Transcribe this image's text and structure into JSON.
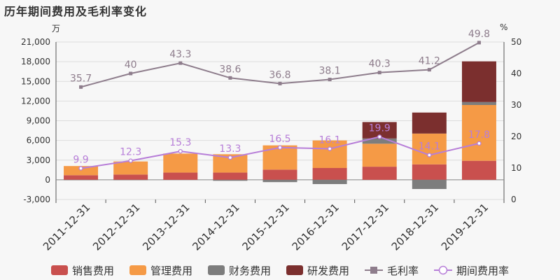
{
  "chart_data": {
    "type": "bar",
    "title": "历年期间费用及毛利率变化",
    "left_axis_unit": "万",
    "right_axis_unit": "%",
    "categories": [
      "2011-12-31",
      "2012-12-31",
      "2013-12-31",
      "2014-12-31",
      "2015-12-31",
      "2016-12-31",
      "2017-12-31",
      "2018-12-31",
      "2019-12-31"
    ],
    "left_ylim": [
      -3000,
      21000
    ],
    "left_ticks": [
      "-3,000",
      "0",
      "3,000",
      "6,000",
      "9,000",
      "12,000",
      "15,000",
      "18,000",
      "21,000"
    ],
    "right_ylim": [
      0,
      50
    ],
    "right_ticks": [
      "0",
      "10",
      "20",
      "30",
      "40",
      "50"
    ],
    "grid": true,
    "legend_position": "bottom-center",
    "stacked_series": [
      {
        "name": "销售费用",
        "color": "#c9504e",
        "values": [
          700,
          800,
          1100,
          1100,
          1550,
          1800,
          2000,
          2350,
          2900
        ]
      },
      {
        "name": "管理费用",
        "color": "#f59a46",
        "values": [
          1400,
          2000,
          2900,
          2800,
          3700,
          4200,
          3500,
          4700,
          8500
        ]
      },
      {
        "name": "财务费用",
        "color": "#7d7d7d",
        "values": [
          -50,
          -50,
          0,
          -150,
          -350,
          -650,
          800,
          -1400,
          450
        ]
      },
      {
        "name": "研发费用",
        "color": "#7b2f2e",
        "values": [
          0,
          0,
          0,
          0,
          0,
          0,
          2500,
          3200,
          6200
        ]
      }
    ],
    "line_series": [
      {
        "name": "毛利率",
        "color": "#8e7d8c",
        "values": [
          35.7,
          40,
          43.3,
          38.6,
          36.8,
          38.1,
          40.3,
          41.2,
          49.8
        ],
        "labels": [
          "35.7",
          "40",
          "43.3",
          "38.6",
          "36.8",
          "38.1",
          "40.3",
          "41.2",
          "49.8"
        ]
      },
      {
        "name": "期间费用率",
        "color": "#b77ed8",
        "values": [
          9.9,
          12.3,
          15.3,
          13.3,
          16.5,
          16.1,
          19.9,
          14.1,
          17.8
        ],
        "labels": [
          "9.9",
          "12.3",
          "15.3",
          "13.3",
          "16.5",
          "16.1",
          "19.9",
          "14.1",
          "17.8"
        ]
      }
    ]
  }
}
